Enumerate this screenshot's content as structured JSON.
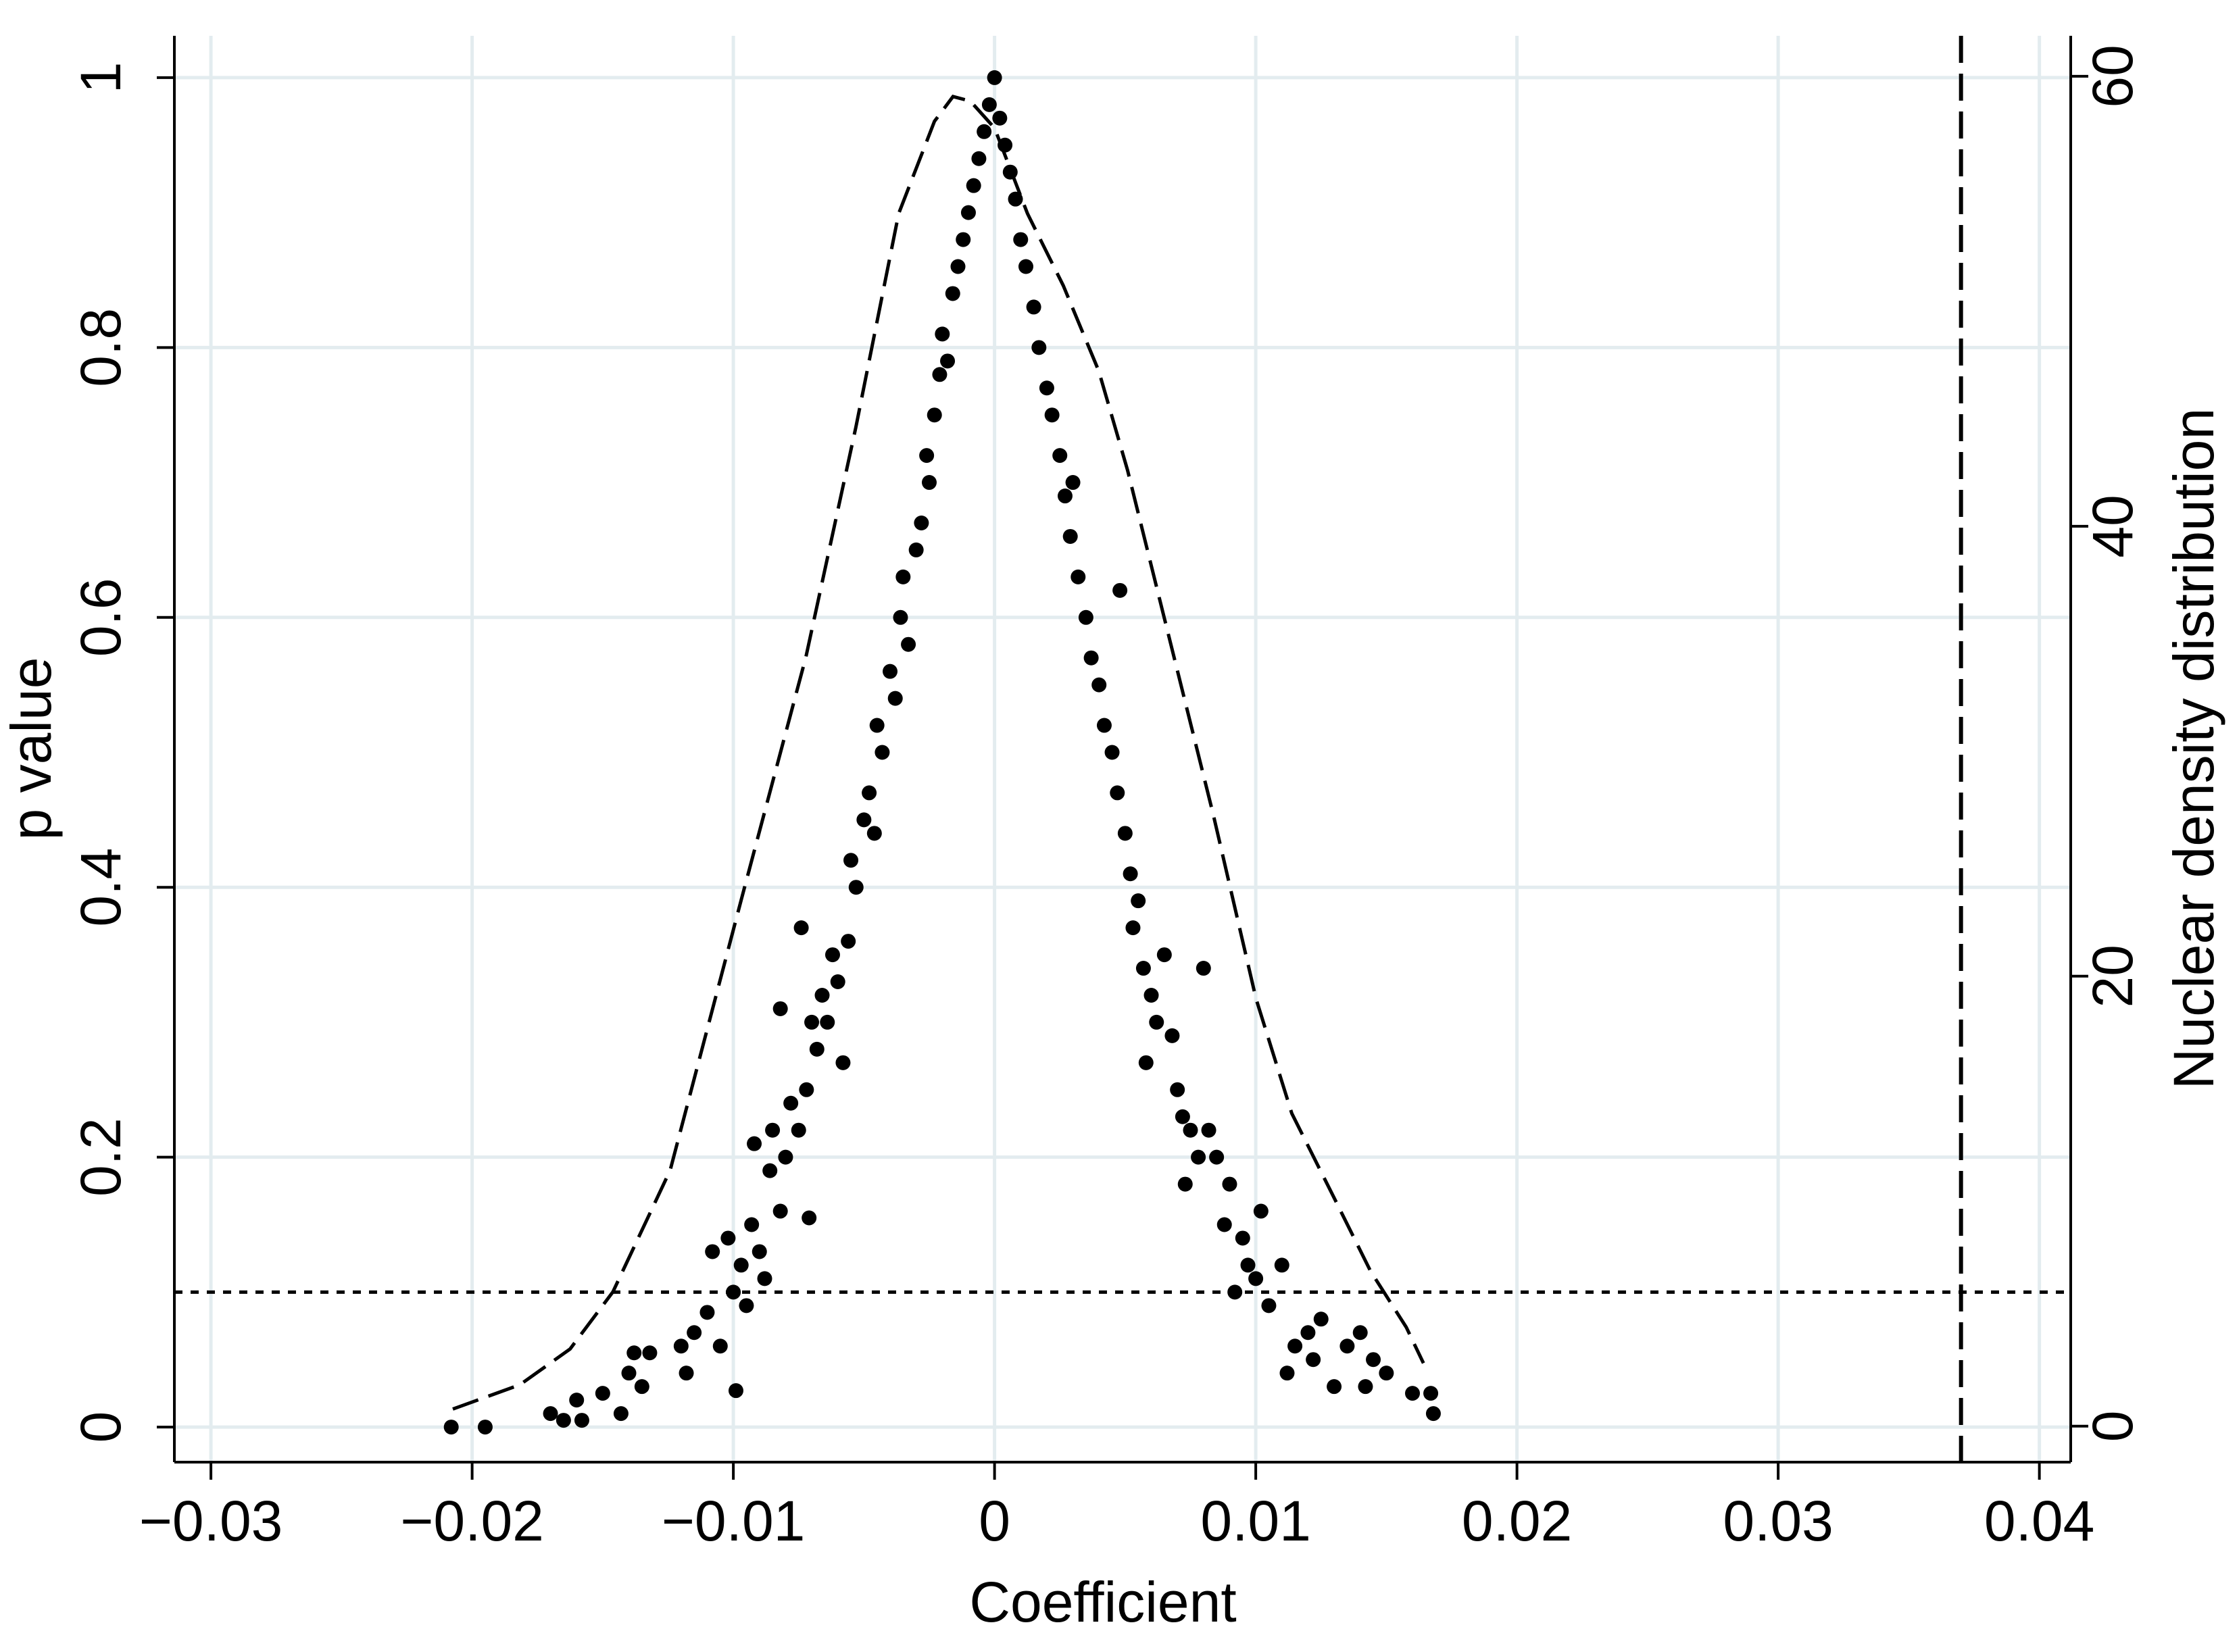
{
  "chart_data": {
    "type": "scatter",
    "xlabel": "Coefficient",
    "ylabel": "p value",
    "y2label": "Nuclear density distribution",
    "xlim": [
      -0.0314,
      0.0412
    ],
    "ylim": [
      -0.026,
      1.031
    ],
    "y2lim": [
      -1.6,
      61.8
    ],
    "xticks": [
      {
        "value": -0.03,
        "label": "−0.03"
      },
      {
        "value": -0.02,
        "label": "−0.02"
      },
      {
        "value": -0.01,
        "label": "−0.01"
      },
      0,
      0.01,
      0.02,
      0.03,
      0.04
    ],
    "yticks": [
      0,
      0.2,
      0.4,
      0.6,
      0.8,
      1
    ],
    "y2ticks": [
      0,
      20,
      40,
      60
    ],
    "grid": true,
    "hlines": [
      0.1
    ],
    "vlines": [
      0.037
    ],
    "series": [
      {
        "type": "scatter",
        "color": "#000000",
        "x": [
          -0.0208,
          -0.0195,
          -0.017,
          -0.0165,
          -0.016,
          -0.0158,
          -0.015,
          -0.0143,
          -0.014,
          -0.0138,
          -0.0135,
          -0.0132,
          -0.012,
          -0.0118,
          -0.0115,
          -0.011,
          -0.0108,
          -0.0105,
          -0.0102,
          -0.01,
          -0.0099,
          -0.0097,
          -0.0095,
          -0.0093,
          -0.0092,
          -0.009,
          -0.0088,
          -0.0086,
          -0.0085,
          -0.0082,
          -0.008,
          -0.0082,
          -0.0078,
          -0.0075,
          -0.0074,
          -0.0072,
          -0.0071,
          -0.007,
          -0.0068,
          -0.0066,
          -0.0064,
          -0.0062,
          -0.006,
          -0.0058,
          -0.0056,
          -0.0055,
          -0.0053,
          -0.005,
          -0.0048,
          -0.0046,
          -0.0045,
          -0.0043,
          -0.004,
          -0.0038,
          -0.0036,
          -0.0035,
          -0.0033,
          -0.003,
          -0.0028,
          -0.0026,
          -0.0025,
          -0.0023,
          -0.0021,
          -0.002,
          -0.0018,
          -0.0016,
          -0.0014,
          -0.0012,
          -0.001,
          -0.0008,
          -0.0006,
          -0.0004,
          -0.0002,
          0,
          0.0002,
          0.0004,
          0.0006,
          0.0008,
          0.001,
          0.0012,
          0.0015,
          0.0017,
          0.002,
          0.0022,
          0.0025,
          0.0027,
          0.0029,
          0.003,
          0.0032,
          0.0035,
          0.0037,
          0.004,
          0.0042,
          0.0045,
          0.0047,
          0.0048,
          0.005,
          0.0052,
          0.0053,
          0.0055,
          0.0057,
          0.006,
          0.0062,
          0.0058,
          0.0065,
          0.0068,
          0.007,
          0.0072,
          0.0073,
          0.0075,
          0.0078,
          0.008,
          0.0082,
          0.0085,
          0.0088,
          0.009,
          0.0092,
          0.0095,
          0.0097,
          0.01,
          0.0102,
          0.0105,
          0.011,
          0.0112,
          0.0115,
          0.012,
          0.0122,
          0.0125,
          0.013,
          0.0135,
          0.014,
          0.0142,
          0.0145,
          0.015,
          0.016,
          0.0168,
          0.0167
        ],
        "values": [
          0.0,
          0.0,
          0.01,
          0.005,
          0.02,
          0.005,
          0.025,
          0.01,
          0.04,
          0.055,
          0.03,
          0.055,
          0.06,
          0.04,
          0.07,
          0.085,
          0.13,
          0.06,
          0.14,
          0.1,
          0.027,
          0.12,
          0.09,
          0.15,
          0.21,
          0.13,
          0.11,
          0.19,
          0.22,
          0.16,
          0.2,
          0.31,
          0.24,
          0.22,
          0.37,
          0.25,
          0.155,
          0.3,
          0.28,
          0.32,
          0.3,
          0.35,
          0.33,
          0.27,
          0.36,
          0.42,
          0.4,
          0.45,
          0.47,
          0.44,
          0.52,
          0.5,
          0.56,
          0.54,
          0.6,
          0.63,
          0.58,
          0.65,
          0.67,
          0.72,
          0.7,
          0.75,
          0.78,
          0.81,
          0.79,
          0.84,
          0.86,
          0.88,
          0.9,
          0.92,
          0.94,
          0.96,
          0.98,
          1.0,
          0.97,
          0.95,
          0.93,
          0.91,
          0.88,
          0.86,
          0.83,
          0.8,
          0.77,
          0.75,
          0.72,
          0.69,
          0.66,
          0.7,
          0.63,
          0.6,
          0.57,
          0.55,
          0.52,
          0.5,
          0.47,
          0.62,
          0.44,
          0.41,
          0.37,
          0.39,
          0.34,
          0.32,
          0.3,
          0.27,
          0.35,
          0.29,
          0.25,
          0.23,
          0.18,
          0.22,
          0.2,
          0.34,
          0.22,
          0.2,
          0.15,
          0.18,
          0.1,
          0.14,
          0.12,
          0.11,
          0.16,
          0.09,
          0.12,
          0.04,
          0.06,
          0.07,
          0.05,
          0.08,
          0.03,
          0.06,
          0.07,
          0.03,
          0.05,
          0.04,
          0.025,
          0.01,
          0.025
        ]
      },
      {
        "type": "line",
        "axis": "y2",
        "color": "#000000",
        "dash": "dashed",
        "x": [
          -0.02074,
          -0.01817,
          -0.01625,
          -0.01461,
          -0.01242,
          -0.00969,
          -0.00722,
          -0.00531,
          -0.00367,
          -0.0023,
          -0.00159,
          -0.00093,
          0,
          0.00126,
          0.00263,
          0.00399,
          0.00509,
          0.00646,
          0.00837,
          0.01001,
          0.01138,
          0.01302,
          0.01439,
          0.01576,
          0.01642
        ],
        "values": [
          0.76,
          1.84,
          3.43,
          5.97,
          11.37,
          23.43,
          34.2,
          44.4,
          53.9,
          58.0,
          59.1,
          58.9,
          57.7,
          53.9,
          50.7,
          46.9,
          42.5,
          36.1,
          27.2,
          19.0,
          13.9,
          10.1,
          6.9,
          4.4,
          2.8
        ]
      }
    ]
  }
}
